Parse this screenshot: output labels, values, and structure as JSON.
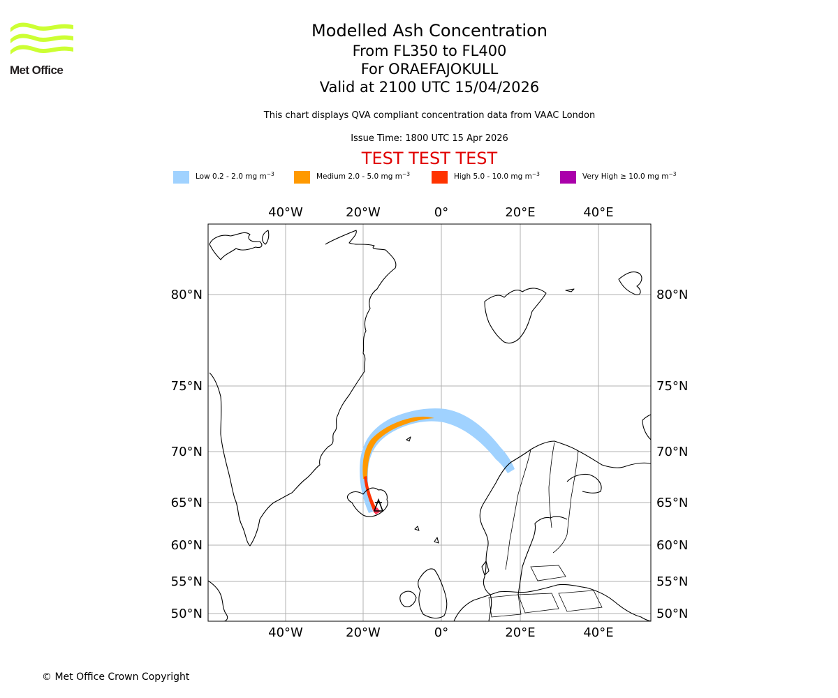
{
  "logo": {
    "name": "Met Office",
    "color": "#ccff33"
  },
  "title": {
    "main": "Modelled Ash Concentration",
    "levels": "From FL350 to FL400",
    "volcano": "For ORAEFAJOKULL",
    "valid": "Valid at 2100 UTC 15/04/2026"
  },
  "notes": {
    "qva": "This chart displays QVA compliant concentration data from VAAC London",
    "issue": "Issue Time: 1800 UTC 15 Apr 2026"
  },
  "test_banner": "TEST TEST TEST",
  "legend": [
    {
      "key": "low",
      "label": "Low 0.2 - 2.0 mg m",
      "color": "#a0d2ff"
    },
    {
      "key": "medium",
      "label": "Medium 2.0 - 5.0 mg m",
      "color": "#ff9900"
    },
    {
      "key": "high",
      "label": "High 5.0 - 10.0 mg m",
      "color": "#ff3300"
    },
    {
      "key": "veryhigh",
      "label": "Very High ≥ 10.0 mg m",
      "color": "#aa00aa"
    }
  ],
  "legend_unit_exponent": "−3",
  "map": {
    "lon_ticks": [
      "40°W",
      "20°W",
      "0°",
      "20°E",
      "40°E"
    ],
    "lat_ticks": [
      "80°N",
      "75°N",
      "70°N",
      "65°N",
      "60°N",
      "55°N",
      "50°N"
    ],
    "gridline_color": "#b0b0b0",
    "coastline_color": "#000000"
  },
  "copyright": "© Met Office Crown Copyright"
}
